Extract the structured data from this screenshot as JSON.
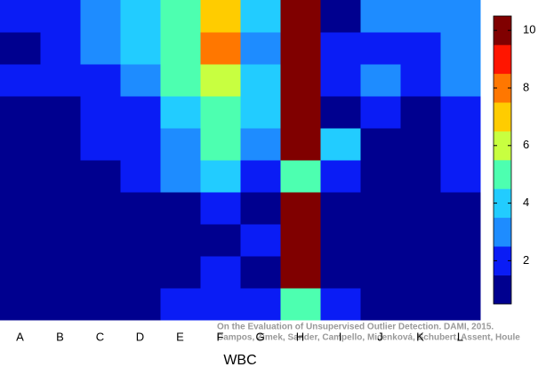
{
  "chart_data": {
    "type": "heatmap",
    "x_label": "WBC",
    "categories": [
      "A",
      "B",
      "C",
      "D",
      "E",
      "F",
      "G",
      "H",
      "I",
      "J",
      "K",
      "L"
    ],
    "z": [
      [
        2,
        2,
        3,
        4,
        5,
        7,
        4,
        10,
        1,
        3,
        3,
        3
      ],
      [
        1,
        2,
        3,
        4,
        5,
        8,
        3,
        10,
        2,
        2,
        2,
        3
      ],
      [
        2,
        2,
        2,
        3,
        5,
        6,
        4,
        10,
        2,
        3,
        2,
        3
      ],
      [
        1,
        1,
        2,
        2,
        4,
        5,
        4,
        10,
        1,
        2,
        1,
        2
      ],
      [
        1,
        1,
        2,
        2,
        3,
        5,
        3,
        10,
        4,
        1,
        1,
        2
      ],
      [
        1,
        1,
        1,
        2,
        3,
        4,
        2,
        5,
        2,
        1,
        1,
        2
      ],
      [
        1,
        1,
        1,
        1,
        1,
        2,
        1,
        10,
        1,
        1,
        1,
        1
      ],
      [
        1,
        1,
        1,
        1,
        1,
        1,
        2,
        10,
        1,
        1,
        1,
        1
      ],
      [
        1,
        1,
        1,
        1,
        1,
        2,
        1,
        10,
        1,
        1,
        1,
        1
      ],
      [
        1,
        1,
        1,
        1,
        2,
        2,
        2,
        5,
        2,
        1,
        1,
        1
      ]
    ],
    "colorscale": [
      "#00008f",
      "#0a1cf5",
      "#1e8cff",
      "#22ccff",
      "#4dffb0",
      "#c8ff40",
      "#ffcc00",
      "#ff7700",
      "#ff1500",
      "#800000"
    ],
    "clim": [
      0.5,
      10.5
    ],
    "cticks": [
      2,
      4,
      6,
      8,
      10
    ],
    "footnote": [
      "On the Evaluation of Unsupervised Outlier Detection. DAMI, 2015.",
      "Campos, Zimek, Sander, Campello, Micenková, Schubert, Assent, Houle"
    ]
  }
}
